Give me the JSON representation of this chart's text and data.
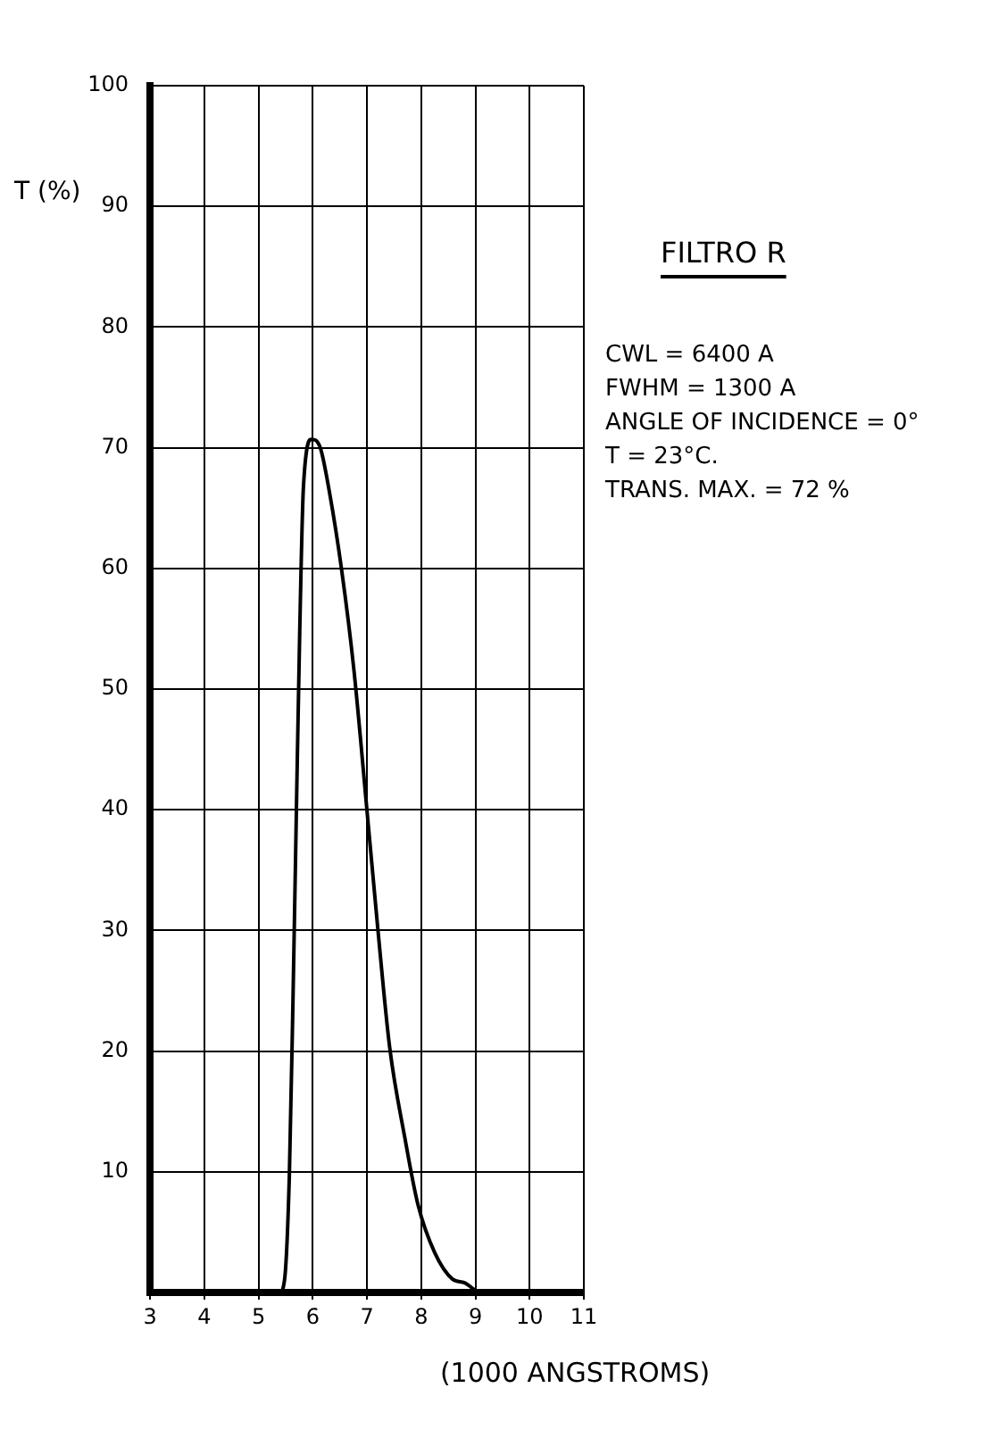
{
  "chart_data": {
    "type": "line",
    "title": "FILTRO R",
    "xlabel": "(1000 ANGSTROMS)",
    "ylabel": "T (%)",
    "annotations": [
      "CWL = 6400 A",
      "FWHM = 1300 A",
      "ANGLE OF INCIDENCE = 0°",
      "T = 23°C.",
      "TRANS. MAX. = 72 %"
    ],
    "x": [
      3,
      5.0,
      5.39,
      5.48,
      5.57,
      5.64,
      5.7,
      5.76,
      5.83,
      5.98,
      6.14,
      6.31,
      6.53,
      6.76,
      7.0,
      7.2,
      7.42,
      7.7,
      7.94,
      8.25,
      8.58,
      8.8,
      9.1,
      11
    ],
    "series": [
      {
        "color": "#000000",
        "values": [
          0,
          0,
          0,
          1,
          9.7,
          25,
          40,
          54.5,
          66.8,
          70.7,
          70,
          66.3,
          60,
          51.6,
          40,
          30.2,
          20.3,
          12.8,
          7.3,
          3.3,
          1.1,
          0.8,
          0,
          0
        ]
      }
    ],
    "xlim": [
      3,
      11
    ],
    "xticks": [
      3,
      4,
      5,
      6,
      7,
      8,
      9,
      10,
      11
    ],
    "ylim": [
      0,
      100
    ],
    "yticks": [
      10,
      20,
      30,
      40,
      50,
      60,
      70,
      80,
      90,
      100
    ],
    "grid": true,
    "legend": false,
    "marker": "none",
    "line_style": "solid"
  }
}
